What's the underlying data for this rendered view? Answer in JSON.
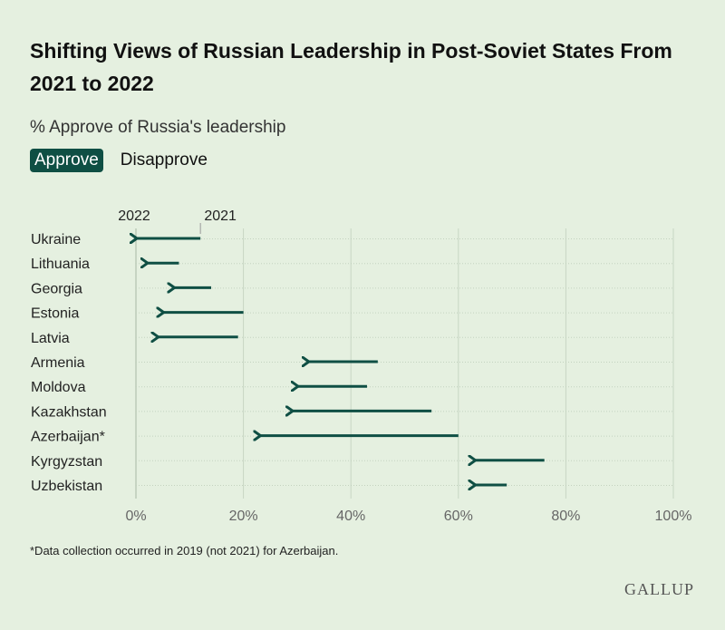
{
  "header": {
    "title": "Shifting Views of Russian Leadership in Post-Soviet States From 2021 to 2022",
    "subtitle": "% Approve of Russia's leadership"
  },
  "toggle": {
    "approve_label": "Approve",
    "disapprove_label": "Disapprove"
  },
  "colors": {
    "background": "#e5f0e0",
    "arrow": "#0f4f44",
    "active_tab": "#0f4f44"
  },
  "chart_data": {
    "type": "arrow",
    "legend_labels": {
      "start": "2021",
      "end": "2022"
    },
    "categories": [
      "Ukraine",
      "Lithuania",
      "Georgia",
      "Estonia",
      "Latvia",
      "Armenia",
      "Moldova",
      "Kazakhstan",
      "Azerbaijan*",
      "Kyrgyzstan",
      "Uzbekistan"
    ],
    "series": [
      {
        "name": "2021",
        "values": [
          12,
          8,
          14,
          20,
          19,
          45,
          43,
          55,
          60,
          76,
          69
        ]
      },
      {
        "name": "2022",
        "values": [
          0,
          2,
          7,
          5,
          4,
          32,
          30,
          29,
          23,
          63,
          63
        ]
      }
    ],
    "xlim": [
      0,
      100
    ],
    "x_ticks": [
      "0%",
      "20%",
      "40%",
      "60%",
      "80%",
      "100%"
    ],
    "x_tick_values": [
      0,
      20,
      40,
      60,
      80,
      100
    ],
    "grid": true
  },
  "footnote": "*Data collection occurred in 2019 (not 2021) for Azerbaijan.",
  "logo": "GALLUP"
}
